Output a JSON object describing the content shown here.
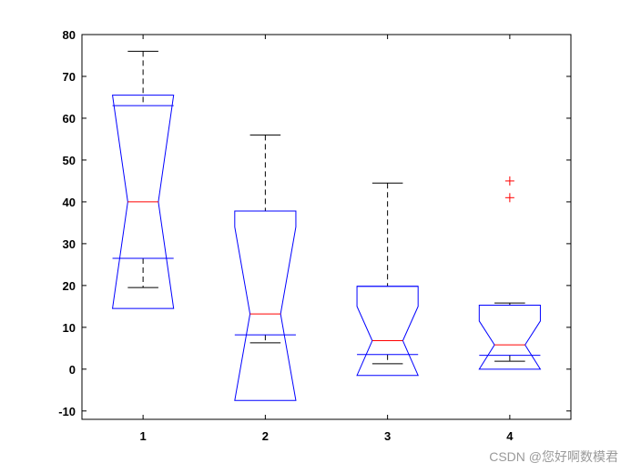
{
  "chart_data": {
    "type": "boxplot",
    "notched": true,
    "title": "",
    "xlabel": "",
    "ylabel": "",
    "categories": [
      "1",
      "2",
      "3",
      "4"
    ],
    "xlim": [
      0.5,
      4.5
    ],
    "ylim": [
      -12,
      80
    ],
    "yticks": [
      -10,
      0,
      10,
      20,
      30,
      40,
      50,
      60,
      70,
      80
    ],
    "grid": false,
    "colors": {
      "box": "#0000ff",
      "median": "#ff0000",
      "whisker": "#000000",
      "outlier": "#ff0000",
      "axis": "#000000"
    },
    "boxes": [
      {
        "label": "1",
        "whisker_low": 19.5,
        "q1": 26.5,
        "median": 40,
        "q3": 63,
        "whisker_high": 76,
        "notch_low": 14.5,
        "notch_high": 65.5,
        "outliers": []
      },
      {
        "label": "2",
        "whisker_low": 6.3,
        "q1": 8.2,
        "median": 13.2,
        "q3": 37.8,
        "whisker_high": 56,
        "notch_low": -7.5,
        "notch_high": 34,
        "outliers": []
      },
      {
        "label": "3",
        "whisker_low": 1.3,
        "q1": 3.5,
        "median": 6.8,
        "q3": 19.8,
        "whisker_high": 44.5,
        "notch_low": -1.5,
        "notch_high": 15,
        "outliers": []
      },
      {
        "label": "4",
        "whisker_low": 1.9,
        "q1": 3.3,
        "median": 5.8,
        "q3": 15.3,
        "whisker_high": 15.8,
        "notch_low": 0,
        "notch_high": 11.5,
        "outliers": [
          41,
          45
        ]
      }
    ]
  },
  "watermark": "CSDN @您好啊数模君"
}
